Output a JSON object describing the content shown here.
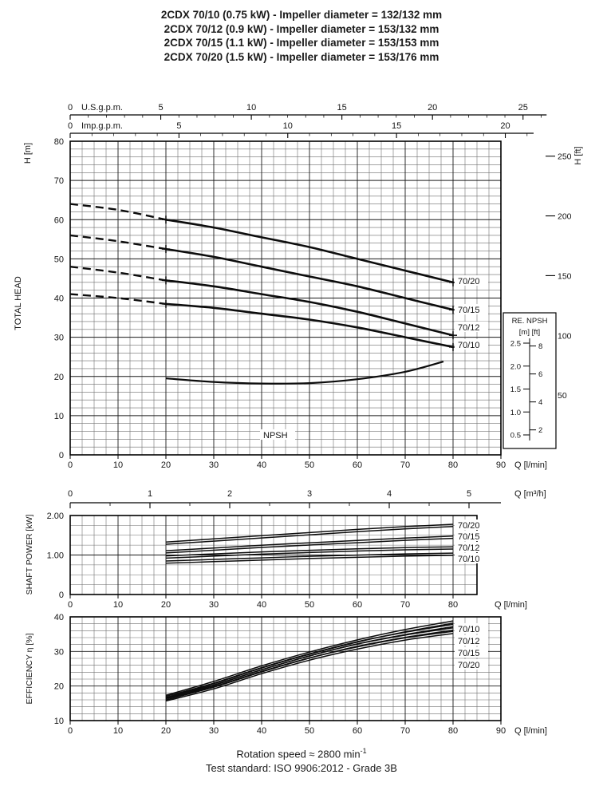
{
  "header": {
    "title_lines": [
      "2CDX 70/10 (0.75 kW) - Impeller diameter = 132/132 mm",
      "2CDX 70/12 (0.9 kW) - Impeller diameter = 153/132 mm",
      "2CDX 70/15 (1.1 kW) - Impeller diameter = 153/153 mm",
      "2CDX 70/20 (1.5 kW) - Impeller diameter = 153/176 mm"
    ]
  },
  "footer": {
    "rotation_speed": "Rotation speed ≈ 2800 min",
    "rotation_speed_sup": "-1",
    "test_standard": "Test standard: ISO 9906:2012 - Grade 3B"
  },
  "chart_data": [
    {
      "id": "head",
      "type": "line",
      "ylabel": "TOTAL HEAD",
      "yaxis_left": {
        "label": "H [m]",
        "range": [
          0,
          80
        ],
        "ticks": [
          0,
          10,
          20,
          30,
          40,
          50,
          60,
          70,
          80
        ]
      },
      "yaxis_right": {
        "label": "H [ft]",
        "ticks": [
          50,
          100,
          150,
          200,
          250
        ],
        "ft_to_m": 0.3048
      },
      "xaxis_bottom": {
        "label": "Q [l/min]",
        "range": [
          0,
          90
        ],
        "ticks": [
          0,
          10,
          20,
          30,
          40,
          50,
          60,
          70,
          80,
          90
        ]
      },
      "xaxis_m3h": {
        "label": "Q [m³/h]",
        "ticks": [
          0,
          1,
          2,
          3,
          4,
          5
        ],
        "lmin_per_unit": 16.667
      },
      "xaxis_usgpm": {
        "label": "U.S.g.p.m.",
        "ticks": [
          0,
          5,
          10,
          15,
          20,
          25
        ],
        "lmin_per_unit": 3.785
      },
      "xaxis_impgpm": {
        "label": "Imp.g.p.m.",
        "ticks": [
          0,
          5,
          10,
          15,
          20
        ],
        "lmin_per_unit": 4.546
      },
      "series": [
        {
          "name": "70/20",
          "x": [
            0,
            10,
            20,
            30,
            40,
            50,
            60,
            70,
            80
          ],
          "y": [
            64,
            62.5,
            60,
            58,
            55.5,
            53,
            50,
            47,
            44
          ],
          "dash_until": 20
        },
        {
          "name": "70/15",
          "x": [
            0,
            10,
            20,
            30,
            40,
            50,
            60,
            70,
            80
          ],
          "y": [
            56,
            54.5,
            52.5,
            50.5,
            48,
            45.5,
            43,
            40,
            37
          ],
          "dash_until": 20
        },
        {
          "name": "70/12",
          "x": [
            0,
            10,
            20,
            30,
            40,
            50,
            60,
            70,
            80
          ],
          "y": [
            48,
            46.5,
            44.5,
            43,
            41,
            39,
            36.5,
            33.5,
            30.5
          ],
          "dash_until": 20
        },
        {
          "name": "70/10",
          "x": [
            0,
            10,
            20,
            30,
            40,
            50,
            60,
            70,
            80
          ],
          "y": [
            41,
            40,
            38.5,
            37.5,
            36,
            34.5,
            32.5,
            30,
            27.5
          ],
          "dash_until": 20
        }
      ],
      "npsh": {
        "label": "NPSH",
        "x": [
          20,
          30,
          40,
          50,
          60,
          70,
          78
        ],
        "y_on_head_scale": [
          19.5,
          18.6,
          18.2,
          18.3,
          19.3,
          21.2,
          23.8
        ],
        "ref_box": {
          "title": "RE. NPSH",
          "units": "[m] [ft]",
          "m_ticks": [
            2.5,
            2.0,
            1.5,
            1.0,
            0.5
          ],
          "ft_ticks": [
            8,
            6,
            4,
            2
          ]
        }
      }
    },
    {
      "id": "power",
      "type": "line",
      "ylabel": "SHAFT POWER  [kW]",
      "yaxis": {
        "range": [
          0,
          2
        ],
        "ticks": [
          {
            "v": 0,
            "l": "0"
          },
          {
            "v": 1,
            "l": "1.00"
          },
          {
            "v": 2,
            "l": "2.00"
          }
        ]
      },
      "xaxis": {
        "label": "Q [l/min]",
        "range": [
          0,
          85
        ],
        "ticks": [
          0,
          10,
          20,
          30,
          40,
          50,
          60,
          70,
          80
        ]
      },
      "series": [
        {
          "name": "70/20",
          "x": [
            20,
            30,
            40,
            50,
            60,
            70,
            80
          ],
          "y": [
            1.3,
            1.38,
            1.46,
            1.54,
            1.62,
            1.69,
            1.75
          ]
        },
        {
          "name": "70/15",
          "x": [
            20,
            30,
            40,
            50,
            60,
            70,
            80
          ],
          "y": [
            1.08,
            1.15,
            1.22,
            1.28,
            1.34,
            1.4,
            1.45
          ]
        },
        {
          "name": "70/12",
          "x": [
            20,
            30,
            40,
            50,
            60,
            70,
            80
          ],
          "y": [
            0.95,
            1.0,
            1.05,
            1.09,
            1.13,
            1.16,
            1.18
          ]
        },
        {
          "name": "70/10",
          "x": [
            20,
            30,
            40,
            50,
            60,
            70,
            80
          ],
          "y": [
            0.82,
            0.86,
            0.9,
            0.94,
            0.97,
            1.0,
            1.02
          ]
        }
      ]
    },
    {
      "id": "efficiency",
      "type": "line",
      "ylabel": "EFFICIENCY  η  [%]",
      "yaxis": {
        "range": [
          10,
          40
        ],
        "ticks": [
          10,
          20,
          30,
          40
        ]
      },
      "xaxis": {
        "label": "Q [l/min]",
        "range": [
          0,
          90
        ],
        "ticks": [
          0,
          10,
          20,
          30,
          40,
          50,
          60,
          70,
          80,
          90
        ]
      },
      "series": [
        {
          "name": "70/10",
          "x": [
            20,
            30,
            40,
            50,
            60,
            70,
            80
          ],
          "y": [
            17,
            21,
            25.5,
            29.5,
            33,
            36,
            38.5
          ]
        },
        {
          "name": "70/12",
          "x": [
            20,
            30,
            40,
            50,
            60,
            70,
            80
          ],
          "y": [
            16.7,
            20.5,
            25,
            29,
            32.5,
            35.2,
            37.5
          ]
        },
        {
          "name": "70/15",
          "x": [
            20,
            30,
            40,
            50,
            60,
            70,
            80
          ],
          "y": [
            16.3,
            20,
            24.4,
            28.4,
            31.8,
            34.4,
            36.5
          ]
        },
        {
          "name": "70/20",
          "x": [
            20,
            30,
            40,
            50,
            60,
            70,
            80
          ],
          "y": [
            16,
            19.5,
            23.9,
            27.8,
            31,
            33.6,
            35.5
          ]
        }
      ],
      "label_order_right": [
        "70/10",
        "70/12",
        "70/15",
        "70/20"
      ]
    }
  ]
}
